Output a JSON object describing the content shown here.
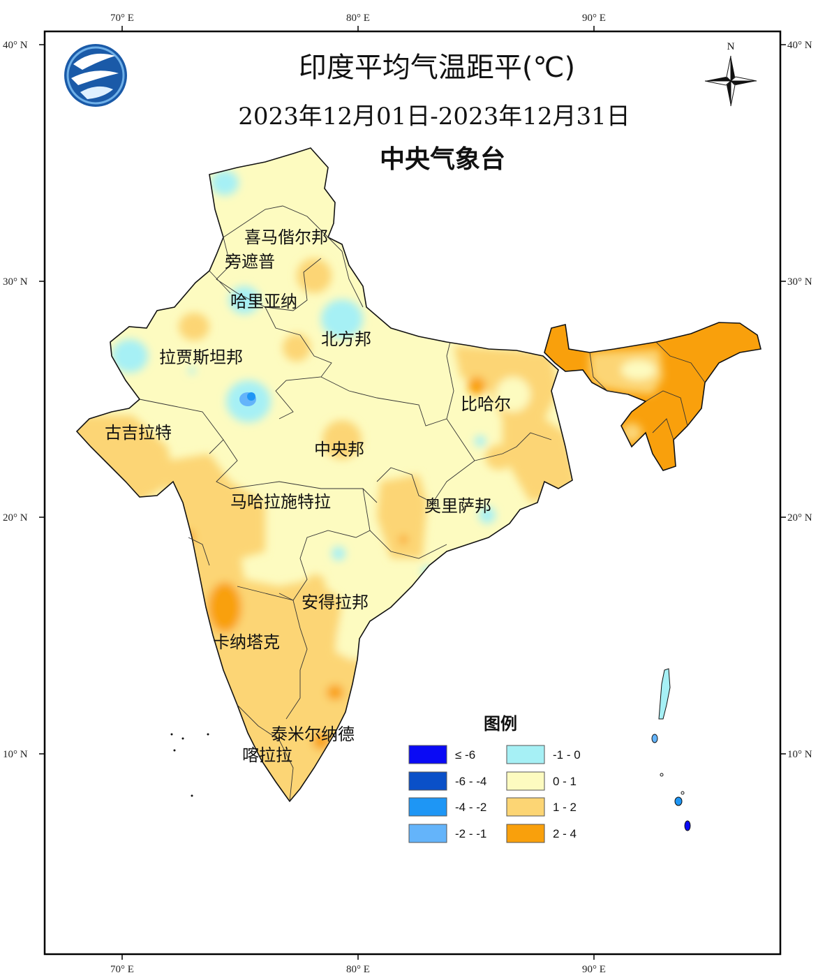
{
  "title": "印度平均气温距平(℃)",
  "subtitle": "2023年12月01日-2023年12月31日",
  "agency": "中央气象台",
  "north_label": "N",
  "lon_ticks": [
    "70° E",
    "80° E",
    "90° E"
  ],
  "lat_ticks": [
    "40° N",
    "30° N",
    "20° N",
    "10° N"
  ],
  "regions": [
    "喜马偕尔邦",
    "旁遮普",
    "哈里亚纳",
    "北方邦",
    "拉贾斯坦邦",
    "古吉拉特",
    "比哈尔",
    "中央邦",
    "马哈拉施特拉",
    "奥里萨邦",
    "安得拉邦",
    "卡纳塔克",
    "泰米尔纳德",
    "喀拉拉"
  ],
  "legend": {
    "title": "图例",
    "items": [
      {
        "label": "≤ -6",
        "color": "#0a0af5"
      },
      {
        "label": "-6 - -4",
        "color": "#0a50c8"
      },
      {
        "label": "-4 - -2",
        "color": "#1e96f5"
      },
      {
        "label": "-2 - -1",
        "color": "#64b4fa"
      },
      {
        "label": "-1 - 0",
        "color": "#a6f0f5"
      },
      {
        "label": "0 - 1",
        "color": "#fdfbc0"
      },
      {
        "label": "1 - 2",
        "color": "#fcd574"
      },
      {
        "label": "2 - 4",
        "color": "#f9a00c"
      }
    ]
  }
}
